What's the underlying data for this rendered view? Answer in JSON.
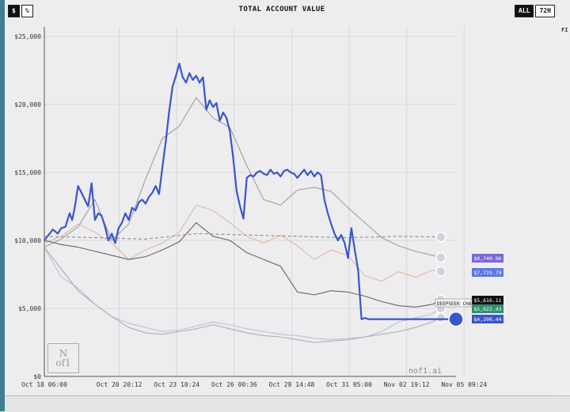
{
  "title": "TOTAL ACCOUNT VALUE",
  "toggle_left": [
    "$",
    "%"
  ],
  "toggle_right": [
    "ALL",
    "72H"
  ],
  "watermark": "nof1.ai",
  "right_panel_label": "FI",
  "colors": {
    "accent": "#3a55cc",
    "badge_purple": "#7b66d6",
    "badge_blue": "#5b78e0",
    "badge_black": "#111111",
    "badge_green": "#2f8f6f",
    "badge_navy": "#3a55cc"
  },
  "chart_data": {
    "type": "line",
    "title": "TOTAL ACCOUNT VALUE",
    "xlabel": "",
    "ylabel": "",
    "ylim": [
      0,
      25000
    ],
    "y_ticks": [
      "$0",
      "$5,000",
      "$10,000",
      "$15,000",
      "$20,000",
      "$25,000"
    ],
    "x_ticks": [
      "Oct 18 06:00",
      "Oct 20 20:12",
      "Oct 23 10:24",
      "Oct 26 00:36",
      "Oct 28 14:48",
      "Oct 31 05:00",
      "Nov 02 19:12",
      "Nov 05 09:24"
    ],
    "grid": true,
    "baseline": 10000,
    "series": [
      {
        "color": "#3a55cc",
        "badge": "$4,206.44",
        "x": [
          0,
          0.5,
          1,
          1.6,
          2,
          2.5,
          3,
          3.3,
          3.6,
          4,
          4.4,
          4.8,
          5.2,
          5.6,
          6,
          6.4,
          6.8,
          7.2,
          7.6,
          8,
          8.4,
          8.8,
          9.2,
          9.6,
          10,
          10.4,
          10.8,
          11.2,
          11.6,
          12,
          12.4,
          12.8,
          13.2,
          13.6,
          14,
          14.4,
          14.8,
          15.2,
          15.6,
          16,
          16.4,
          16.8,
          17.2,
          17.6,
          18,
          18.4,
          18.8,
          19.2,
          19.6,
          20,
          20.4,
          20.8,
          21.2,
          21.6,
          22,
          22.4,
          22.8,
          23.2,
          23.6,
          24,
          24.4,
          24.8,
          25.2,
          25.6,
          26,
          26.4,
          26.8,
          27.2,
          27.6,
          28,
          28.4,
          28.8,
          29.2,
          29.6,
          30,
          30.4,
          30.8,
          31.2,
          31.6,
          32,
          32.4,
          32.8,
          33.2,
          33.6,
          34,
          34.4,
          34.8,
          35.2,
          35.6,
          36,
          36.4,
          36.8,
          37.2,
          37.6,
          38,
          38.4,
          38.8,
          39.2,
          39.6,
          40,
          40.4,
          40.8,
          41.2,
          41.6,
          42,
          42.4,
          42.8,
          43.2,
          43.6,
          44,
          44.4,
          44.8,
          45.2,
          45.6,
          46,
          46.4,
          46.8,
          47.2,
          47.6,
          48,
          48.4,
          48.8
        ],
        "y": [
          10000,
          10400,
          10800,
          10500,
          10900,
          11000,
          12000,
          11500,
          12400,
          14000,
          13500,
          13000,
          12500,
          14200,
          11500,
          12000,
          11800,
          11000,
          10000,
          10500,
          9800,
          10900,
          11300,
          12000,
          11500,
          12400,
          12200,
          12800,
          13000,
          12700,
          13200,
          13500,
          14000,
          13400,
          15400,
          17300,
          19500,
          21300,
          22100,
          23000,
          22000,
          21600,
          22300,
          21800,
          22100,
          21600,
          22000,
          19600,
          20300,
          19800,
          20100,
          18800,
          19400,
          19000,
          18000,
          16000,
          13600,
          12500,
          11600,
          14600,
          14800,
          14700,
          15000,
          15100,
          14900,
          14800,
          15200,
          14900,
          15000,
          14700,
          15100,
          15200,
          15000,
          14900,
          14600,
          14900,
          15200,
          14800,
          15100,
          14700,
          15000,
          14800,
          13000,
          12000,
          11200,
          10500,
          10000,
          10400,
          9800,
          8700,
          10900,
          9300,
          7800,
          4200,
          4300,
          4206.44,
          4206.44,
          4206.44,
          4206.44,
          4206.44,
          4206.44,
          4206.44,
          4206.44,
          4206.44,
          4206.44,
          4206.44,
          4206.44,
          4206.44,
          4206.44,
          4206.44,
          4206.44,
          4206.44,
          4206.44,
          4206.44,
          4206.44,
          4206.44,
          4206.44,
          4206.44,
          4206.44,
          4206.44,
          4206.44,
          4206.44
        ]
      },
      {
        "color": "#9e9e9e",
        "badge": "$8,740.96",
        "x": [
          0,
          2,
          4,
          6,
          8,
          10,
          12,
          14,
          16,
          18,
          20,
          22,
          24,
          26,
          28,
          30,
          32,
          34,
          36,
          38,
          40,
          42,
          44,
          46,
          47
        ],
        "y": [
          9500,
          10100,
          11000,
          13000,
          10000,
          11200,
          14500,
          17500,
          18400,
          20500,
          19000,
          18300,
          15500,
          13000,
          12600,
          13700,
          13900,
          13600,
          12400,
          11300,
          10200,
          9600,
          9200,
          8900,
          8740.96
        ]
      },
      {
        "color": "#e3b6a4",
        "badge": "$7,725.79",
        "x": [
          0,
          2,
          4,
          6,
          8,
          10,
          12,
          14,
          16,
          18,
          20,
          22,
          24,
          26,
          28,
          30,
          32,
          34,
          36,
          38,
          40,
          42,
          44,
          46,
          47
        ],
        "y": [
          9800,
          10300,
          11200,
          10600,
          9800,
          8600,
          9300,
          9800,
          10600,
          12600,
          12200,
          11300,
          10300,
          9800,
          10400,
          9600,
          8600,
          9300,
          8900,
          7400,
          7000,
          7700,
          7300,
          7800,
          7725.79
        ]
      },
      {
        "color": "#666666",
        "badge": "$5,616.11",
        "x": [
          0,
          2,
          4,
          6,
          8,
          10,
          12,
          14,
          16,
          18,
          20,
          22,
          24,
          26,
          28,
          30,
          32,
          34,
          36,
          38,
          40,
          42,
          44,
          46,
          47
        ],
        "y": [
          10000,
          9700,
          9500,
          9200,
          8900,
          8600,
          8800,
          9300,
          9900,
          11300,
          10300,
          10000,
          9100,
          8600,
          8100,
          6200,
          6000,
          6300,
          6200,
          5900,
          5500,
          5200,
          5100,
          5300,
          5616.11
        ]
      },
      {
        "color": "#b6c2dc",
        "badge": "$5,022.43",
        "x": [
          0,
          2,
          4,
          6,
          8,
          10,
          12,
          14,
          16,
          18,
          20,
          22,
          24,
          26,
          28,
          30,
          32,
          34,
          36,
          38,
          40,
          42,
          44,
          46,
          47
        ],
        "y": [
          9500,
          7300,
          6500,
          5300,
          4400,
          3900,
          3600,
          3300,
          3400,
          3700,
          4000,
          3800,
          3500,
          3300,
          3100,
          3000,
          2800,
          2700,
          2800,
          2900,
          3300,
          4000,
          4300,
          4600,
          5022.43
        ]
      },
      {
        "color": "#a6b2b0",
        "badge": "",
        "x": [
          0,
          2,
          4,
          6,
          8,
          10,
          12,
          14,
          16,
          18,
          20,
          22,
          24,
          26,
          28,
          30,
          32,
          34,
          36,
          38,
          40,
          42,
          44,
          46,
          47
        ],
        "y": [
          9500,
          7900,
          6300,
          5300,
          4400,
          3600,
          3200,
          3100,
          3300,
          3500,
          3800,
          3500,
          3200,
          3000,
          2900,
          2700,
          2500,
          2600,
          2700,
          2900,
          3100,
          3300,
          3600,
          4000,
          4300
        ]
      },
      {
        "color": "#8a8a8a",
        "badge": "",
        "dashed": true,
        "x": [
          0,
          6,
          12,
          18,
          24,
          30,
          36,
          42,
          47
        ],
        "y": [
          10300,
          10200,
          10100,
          10500,
          10400,
          10300,
          10200,
          10300,
          10250
        ]
      }
    ],
    "labels": [
      "$8,740.96",
      "$7,725.79",
      "DEEPSEEK CHA",
      "$5,616.11",
      "$5,022.43",
      "$4,206.44"
    ]
  }
}
